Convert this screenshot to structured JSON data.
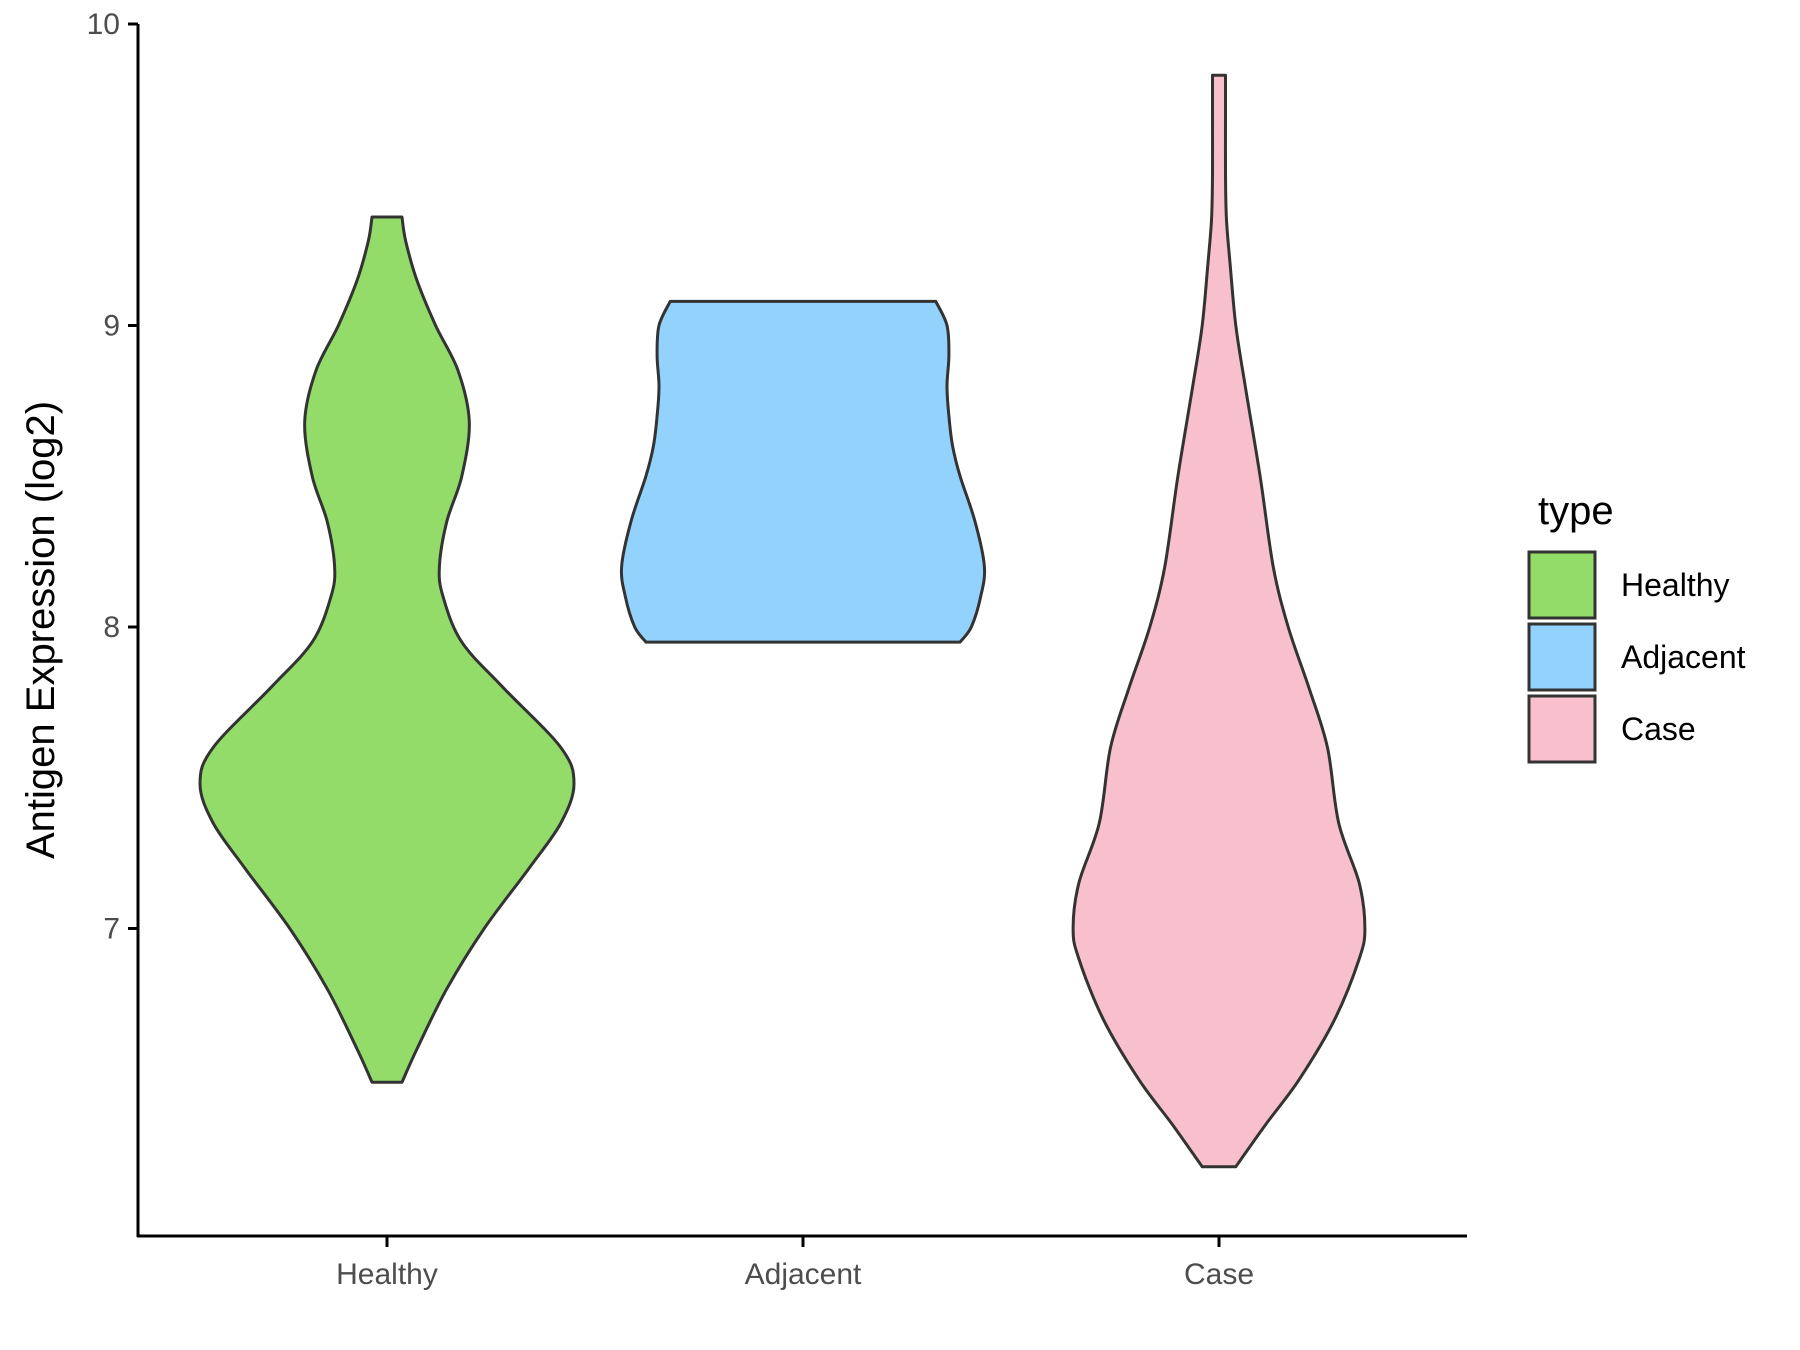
{
  "chart_data": {
    "type": "violin",
    "title": "",
    "xlabel": "",
    "ylabel": "Antigen Expression (log2)",
    "ylim": [
      6.0,
      10.0
    ],
    "yticks": [
      7,
      8,
      9,
      10
    ],
    "grid": false,
    "legend": {
      "title": "type",
      "placement": "right"
    },
    "categories": [
      "Healthy",
      "Adjacent",
      "Case"
    ],
    "series": [
      {
        "name": "Healthy",
        "color": "#93dc6a",
        "min": 6.49,
        "max": 9.36,
        "profile": [
          [
            6.49,
            0.08
          ],
          [
            6.6,
            0.16
          ],
          [
            6.8,
            0.32
          ],
          [
            7.0,
            0.52
          ],
          [
            7.2,
            0.76
          ],
          [
            7.35,
            0.93
          ],
          [
            7.48,
            1.0
          ],
          [
            7.6,
            0.93
          ],
          [
            7.8,
            0.62
          ],
          [
            7.95,
            0.4
          ],
          [
            8.1,
            0.3
          ],
          [
            8.2,
            0.28
          ],
          [
            8.35,
            0.32
          ],
          [
            8.5,
            0.4
          ],
          [
            8.68,
            0.44
          ],
          [
            8.85,
            0.38
          ],
          [
            9.0,
            0.26
          ],
          [
            9.15,
            0.16
          ],
          [
            9.28,
            0.1
          ],
          [
            9.36,
            0.08
          ]
        ]
      },
      {
        "name": "Adjacent",
        "color": "#92d2fd",
        "min": 7.95,
        "max": 9.08,
        "profile": [
          [
            7.95,
            0.84
          ],
          [
            8.0,
            0.9
          ],
          [
            8.1,
            0.95
          ],
          [
            8.2,
            0.97
          ],
          [
            8.35,
            0.92
          ],
          [
            8.5,
            0.84
          ],
          [
            8.6,
            0.8
          ],
          [
            8.7,
            0.78
          ],
          [
            8.8,
            0.77
          ],
          [
            8.9,
            0.78
          ],
          [
            9.0,
            0.77
          ],
          [
            9.08,
            0.71
          ]
        ]
      },
      {
        "name": "Case",
        "color": "#f8c0cc",
        "min": 6.21,
        "max": 9.83,
        "profile": [
          [
            6.21,
            0.09
          ],
          [
            6.35,
            0.25
          ],
          [
            6.5,
            0.43
          ],
          [
            6.7,
            0.62
          ],
          [
            6.9,
            0.75
          ],
          [
            7.0,
            0.78
          ],
          [
            7.15,
            0.75
          ],
          [
            7.35,
            0.64
          ],
          [
            7.6,
            0.58
          ],
          [
            7.8,
            0.48
          ],
          [
            8.0,
            0.37
          ],
          [
            8.2,
            0.29
          ],
          [
            8.5,
            0.22
          ],
          [
            8.8,
            0.14
          ],
          [
            9.0,
            0.09
          ],
          [
            9.2,
            0.06
          ],
          [
            9.35,
            0.04
          ],
          [
            9.5,
            0.035
          ],
          [
            9.7,
            0.035
          ],
          [
            9.83,
            0.035
          ]
        ]
      }
    ]
  }
}
